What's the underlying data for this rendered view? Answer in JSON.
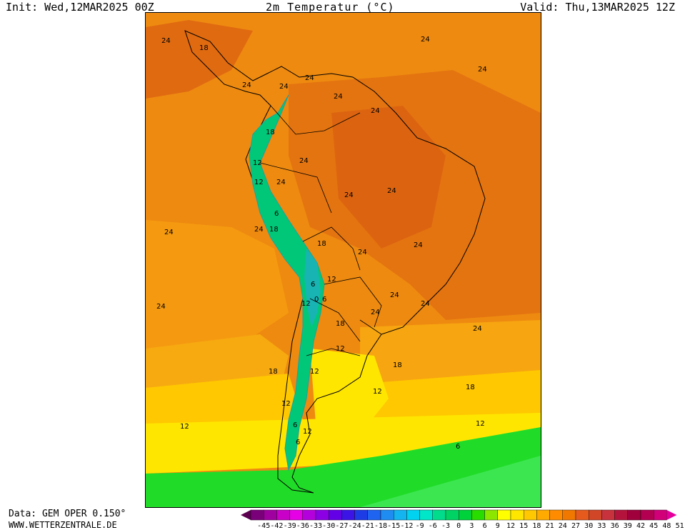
{
  "header": {
    "init": "Init: Wed,12MAR2025 00Z",
    "title": "2m Temperatur (°C)",
    "valid": "Valid: Thu,13MAR2025 12Z"
  },
  "footer": {
    "data_source": "Data: GEM OPER 0.150°",
    "website": "WWW.WETTERZENTRALE.DE"
  },
  "map": {
    "region": "South America",
    "contour_labels": [
      {
        "text": "24"
      },
      {
        "text": "18"
      },
      {
        "text": "24"
      },
      {
        "text": "24"
      },
      {
        "text": "24"
      },
      {
        "text": "24"
      },
      {
        "text": "24"
      },
      {
        "text": "24"
      },
      {
        "text": "24"
      },
      {
        "text": "18"
      },
      {
        "text": "24"
      },
      {
        "text": "12"
      },
      {
        "text": "12"
      },
      {
        "text": "24"
      },
      {
        "text": "24"
      },
      {
        "text": "24"
      },
      {
        "text": "24"
      },
      {
        "text": "6"
      },
      {
        "text": "24"
      },
      {
        "text": "18"
      },
      {
        "text": "24"
      },
      {
        "text": "18"
      },
      {
        "text": "24"
      },
      {
        "text": "24"
      },
      {
        "text": "12"
      },
      {
        "text": "6"
      },
      {
        "text": "0"
      },
      {
        "text": "6"
      },
      {
        "text": "12"
      },
      {
        "text": "24"
      },
      {
        "text": "24"
      },
      {
        "text": "24"
      },
      {
        "text": "18"
      },
      {
        "text": "24"
      },
      {
        "text": "12"
      },
      {
        "text": "18"
      },
      {
        "text": "12"
      },
      {
        "text": "18"
      },
      {
        "text": "12"
      },
      {
        "text": "18"
      },
      {
        "text": "12"
      },
      {
        "text": "12"
      },
      {
        "text": "12"
      },
      {
        "text": "12"
      },
      {
        "text": "6"
      },
      {
        "text": "6"
      },
      {
        "text": "6"
      }
    ]
  },
  "legend": {
    "ticks": [
      "-45",
      "-42",
      "-39",
      "-36",
      "-33",
      "-30",
      "-27",
      "-24",
      "-21",
      "-18",
      "-15",
      "-12",
      "-9",
      "-6",
      "-3",
      "0",
      "3",
      "6",
      "9",
      "12",
      "15",
      "18",
      "21",
      "24",
      "27",
      "30",
      "33",
      "36",
      "39",
      "42",
      "45",
      "48",
      "51"
    ],
    "colors": [
      "#5c0050",
      "#7a007a",
      "#a000a0",
      "#c800c8",
      "#e600e6",
      "#b400dc",
      "#8c00e6",
      "#6400e6",
      "#3c14e6",
      "#1e3ce6",
      "#1e64f0",
      "#1e8cf0",
      "#14b4f0",
      "#00d2f0",
      "#00e6c8",
      "#00dc8c",
      "#00d264",
      "#00d23c",
      "#28dc00",
      "#8ce600",
      "#ffff00",
      "#ffe600",
      "#ffc800",
      "#ffaa00",
      "#ff8c00",
      "#f07800",
      "#e65a1e",
      "#d24628",
      "#c8323c",
      "#b4143c",
      "#a0003c",
      "#b40050",
      "#d20078",
      "#e6009b"
    ]
  }
}
